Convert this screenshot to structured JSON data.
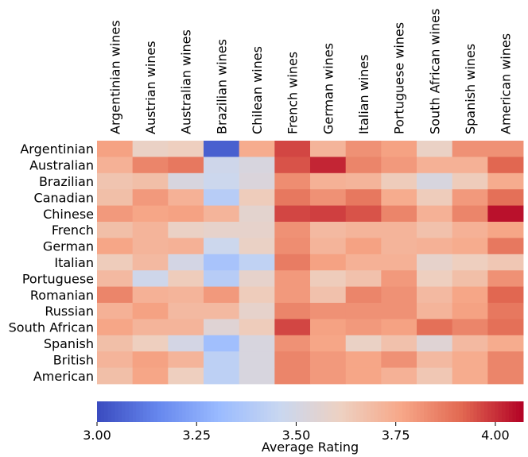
{
  "chart_data": {
    "type": "heatmap",
    "title": "",
    "xlabel": "",
    "ylabel": "",
    "x_categories": [
      "Argentinian wines",
      "Austrian wines",
      "Australian wines",
      "Brazilian wines",
      "Chilean wines",
      "French wines",
      "German wines",
      "Italian wines",
      "Portuguese wines",
      "South African wines",
      "Spanish wines",
      "American wines"
    ],
    "y_categories": [
      "Argentinian",
      "Australian",
      "Brazilian",
      "Canadian",
      "Chinese",
      "French",
      "German",
      "Italian",
      "Portuguese",
      "Romanian",
      "Russian",
      "South African",
      "Spanish",
      "British",
      "American"
    ],
    "values": [
      [
        3.78,
        3.6,
        3.62,
        3.05,
        3.75,
        3.97,
        3.72,
        3.82,
        3.78,
        3.6,
        3.82,
        3.82
      ],
      [
        3.73,
        3.85,
        3.88,
        3.48,
        3.52,
        3.95,
        4.02,
        3.85,
        3.8,
        3.73,
        3.73,
        3.92
      ],
      [
        3.66,
        3.68,
        3.52,
        3.47,
        3.53,
        3.83,
        3.73,
        3.72,
        3.63,
        3.52,
        3.63,
        3.75
      ],
      [
        3.68,
        3.8,
        3.73,
        3.4,
        3.63,
        3.88,
        3.82,
        3.88,
        3.75,
        3.63,
        3.8,
        3.9
      ],
      [
        3.8,
        3.77,
        3.78,
        3.72,
        3.57,
        3.97,
        3.98,
        3.95,
        3.85,
        3.73,
        3.85,
        4.05
      ],
      [
        3.68,
        3.72,
        3.6,
        3.58,
        3.58,
        3.82,
        3.7,
        3.72,
        3.72,
        3.67,
        3.73,
        3.77
      ],
      [
        3.77,
        3.72,
        3.73,
        3.47,
        3.6,
        3.83,
        3.72,
        3.78,
        3.72,
        3.73,
        3.75,
        3.88
      ],
      [
        3.63,
        3.7,
        3.5,
        3.35,
        3.43,
        3.87,
        3.78,
        3.73,
        3.73,
        3.58,
        3.62,
        3.65
      ],
      [
        3.7,
        3.48,
        3.63,
        3.4,
        3.58,
        3.8,
        3.63,
        3.67,
        3.8,
        3.62,
        3.68,
        3.82
      ],
      [
        3.85,
        3.73,
        3.72,
        3.8,
        3.63,
        3.8,
        3.67,
        3.85,
        3.82,
        3.7,
        3.77,
        3.92
      ],
      [
        3.73,
        3.78,
        3.7,
        3.7,
        3.58,
        3.85,
        3.82,
        3.82,
        3.82,
        3.72,
        3.78,
        3.88
      ],
      [
        3.77,
        3.72,
        3.72,
        3.55,
        3.63,
        3.97,
        3.78,
        3.8,
        3.78,
        3.9,
        3.85,
        3.9
      ],
      [
        3.68,
        3.62,
        3.5,
        3.33,
        3.52,
        3.82,
        3.77,
        3.6,
        3.67,
        3.55,
        3.7,
        3.75
      ],
      [
        3.72,
        3.78,
        3.72,
        3.42,
        3.52,
        3.85,
        3.8,
        3.77,
        3.82,
        3.7,
        3.75,
        3.85
      ],
      [
        3.68,
        3.77,
        3.62,
        3.42,
        3.52,
        3.85,
        3.8,
        3.77,
        3.73,
        3.65,
        3.75,
        3.85
      ]
    ],
    "colorbar": {
      "label": "Average Rating",
      "range": [
        3.0,
        4.07
      ],
      "ticks": [
        3.0,
        3.25,
        3.5,
        3.75,
        4.0
      ],
      "tick_labels": [
        "3.00",
        "3.25",
        "3.50",
        "3.75",
        "4.00"
      ],
      "colormap": "coolwarm"
    },
    "grid": false,
    "colors": {
      "cmap_stops": [
        "#3b4cc0",
        "#6788ee",
        "#9abbff",
        "#c9d7f0",
        "#edd1c2",
        "#f7a889",
        "#e26952",
        "#b40426"
      ]
    }
  }
}
